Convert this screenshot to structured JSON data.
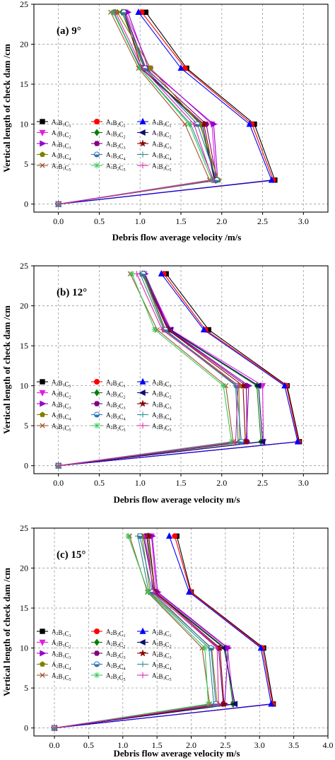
{
  "ylabel": "Vertical length of check dam /cm",
  "colors": {
    "C1": "#000000",
    "C2": "#ff0000",
    "C3": "#0000ff",
    "C4": "#e01ee0",
    "C5": "#008000",
    "C6": "#0d0d6e",
    "C7": "#9900cc",
    "C8": "#800080",
    "C9": "#8b0000",
    "C10": "#808000",
    "C11": "#2e75b6",
    "C12": "#2e8b8b",
    "C13": "#a0522d",
    "C14": "#33cc55",
    "C15": "#dd22aa"
  },
  "chart_data": [
    {
      "type": "line",
      "title": "(a) 9°",
      "xlabel": "Debris flow average velocity  /m/s",
      "ylabel": "Vertical length of check dam /cm",
      "xlim": [
        -0.3,
        3.3
      ],
      "ylim": [
        -1,
        25
      ],
      "xticks": [
        "0.0",
        "0.5",
        "1.0",
        "1.5",
        "2.0",
        "2.5",
        "3.0"
      ],
      "yticks": [
        "0",
        "5",
        "10",
        "15",
        "20",
        "25"
      ],
      "grid": true,
      "legend_position": "middle-left",
      "y": [
        0,
        3,
        10,
        17,
        24
      ],
      "series": [
        {
          "name": "A1B1C1",
          "x": [
            0,
            2.65,
            2.4,
            1.57,
            1.07
          ]
        },
        {
          "name": "A1B2C1",
          "x": [
            0,
            2.63,
            2.37,
            1.55,
            1.02
          ]
        },
        {
          "name": "A1B3C1",
          "x": [
            0,
            2.61,
            2.34,
            1.5,
            0.98
          ]
        },
        {
          "name": "A1B1C2",
          "x": [
            0,
            1.93,
            1.88,
            1.12,
            0.82
          ]
        },
        {
          "name": "A1B2C2",
          "x": [
            0,
            1.92,
            1.74,
            1.05,
            0.78
          ]
        },
        {
          "name": "A1B3C2",
          "x": [
            0,
            1.91,
            1.76,
            1.01,
            0.67
          ]
        },
        {
          "name": "A1B1C3",
          "x": [
            0,
            1.95,
            1.9,
            1.1,
            0.85
          ]
        },
        {
          "name": "A1B2C3",
          "x": [
            0,
            1.94,
            1.81,
            1.07,
            0.81
          ]
        },
        {
          "name": "A1B3C3",
          "x": [
            0,
            1.92,
            1.78,
            1.02,
            0.8
          ]
        },
        {
          "name": "A1B1C4",
          "x": [
            0,
            1.96,
            1.73,
            1.13,
            0.72
          ]
        },
        {
          "name": "A1B2C4",
          "x": [
            0,
            1.94,
            1.7,
            1.06,
            0.8
          ]
        },
        {
          "name": "A1B3C4",
          "x": [
            0,
            1.9,
            1.62,
            1.0,
            0.68
          ]
        },
        {
          "name": "A1B1C5",
          "x": [
            0,
            1.85,
            1.55,
            0.98,
            0.64
          ]
        },
        {
          "name": "A1B2C5",
          "x": [
            0,
            1.88,
            1.6,
            1.0,
            0.67
          ]
        },
        {
          "name": "A1B3C5",
          "x": [
            0,
            1.89,
            1.66,
            1.03,
            0.7
          ]
        }
      ]
    },
    {
      "type": "line",
      "title": "(b) 12°",
      "xlabel": "Debris flow average velocity m/s",
      "ylabel": "Vertical length of check dam /cm",
      "xlim": [
        -0.3,
        3.3
      ],
      "ylim": [
        -1,
        25
      ],
      "xticks": [
        "0.0",
        "0.5",
        "1.0",
        "1.5",
        "2.0",
        "2.5",
        "3.0"
      ],
      "yticks": [
        "0",
        "5",
        "10",
        "15",
        "20",
        "25"
      ],
      "grid": true,
      "legend_position": "middle-left",
      "y": [
        0,
        3,
        10,
        17,
        24
      ],
      "series": [
        {
          "name": "A2B1C1",
          "x": [
            0,
            2.95,
            2.8,
            1.84,
            1.32
          ]
        },
        {
          "name": "A2B2C1",
          "x": [
            0,
            2.94,
            2.79,
            1.8,
            1.29
          ]
        },
        {
          "name": "A2B3C1",
          "x": [
            0,
            2.93,
            2.77,
            1.78,
            1.26
          ]
        },
        {
          "name": "A2B1C2",
          "x": [
            0,
            2.51,
            2.5,
            1.38,
            1.05
          ]
        },
        {
          "name": "A2B2C2",
          "x": [
            0,
            2.48,
            2.43,
            1.36,
            1.05
          ]
        },
        {
          "name": "A2B3C2",
          "x": [
            0,
            2.5,
            2.45,
            1.37,
            1.02
          ]
        },
        {
          "name": "A2B1C3",
          "x": [
            0,
            2.3,
            2.33,
            1.36,
            1.06
          ]
        },
        {
          "name": "A2B2C3",
          "x": [
            0,
            2.31,
            2.3,
            1.35,
            1.04
          ]
        },
        {
          "name": "A2B3C3",
          "x": [
            0,
            2.29,
            2.26,
            1.34,
            1.03
          ]
        },
        {
          "name": "A2B1C4",
          "x": [
            0,
            2.22,
            2.21,
            1.3,
            1.03
          ]
        },
        {
          "name": "A2B2C4",
          "x": [
            0,
            2.24,
            2.18,
            1.31,
            1.04
          ]
        },
        {
          "name": "A2B3C4",
          "x": [
            0,
            2.2,
            2.17,
            1.29,
            1.0
          ]
        },
        {
          "name": "A2B1C5",
          "x": [
            0,
            2.14,
            2.05,
            1.21,
            0.88
          ]
        },
        {
          "name": "A2B2C5",
          "x": [
            0,
            2.12,
            2.02,
            1.18,
            0.9
          ]
        },
        {
          "name": "A2B3C5",
          "x": [
            0,
            2.17,
            2.2,
            1.27,
            0.96
          ]
        }
      ]
    },
    {
      "type": "line",
      "title": "(c) 15°",
      "xlabel": "Debris flow average velocity m/s",
      "ylabel": "Vertical length of check dam /cm",
      "xlim": [
        -0.3,
        4.0
      ],
      "ylim": [
        -1,
        25
      ],
      "xticks": [
        "0.0",
        "0.5",
        "1.0",
        "1.5",
        "2.0",
        "2.5",
        "3.0",
        "3.5",
        "4.0"
      ],
      "yticks": [
        "0",
        "5",
        "10",
        "15",
        "20",
        "25"
      ],
      "grid": true,
      "legend_position": "middle-left",
      "y": [
        0,
        3,
        10,
        17,
        24
      ],
      "series": [
        {
          "name": "A2B1C1",
          "x": [
            0,
            3.2,
            3.06,
            2.0,
            1.79
          ]
        },
        {
          "name": "A2B2C1",
          "x": [
            0,
            3.19,
            3.04,
            1.99,
            1.76
          ]
        },
        {
          "name": "A2B3C1",
          "x": [
            0,
            3.17,
            3.02,
            1.97,
            1.68
          ]
        },
        {
          "name": "A2B1C2",
          "x": [
            0,
            2.62,
            2.53,
            1.49,
            1.42
          ]
        },
        {
          "name": "A2B2C2",
          "x": [
            0,
            2.61,
            2.5,
            1.47,
            1.36
          ]
        },
        {
          "name": "A2B3C2",
          "x": [
            0,
            2.64,
            2.48,
            1.46,
            1.3
          ]
        },
        {
          "name": "A2B1C3",
          "x": [
            0,
            2.49,
            2.54,
            1.51,
            1.43
          ]
        },
        {
          "name": "A2B2C3",
          "x": [
            0,
            2.47,
            2.4,
            1.44,
            1.35
          ]
        },
        {
          "name": "A2B3C3",
          "x": [
            0,
            2.48,
            2.42,
            1.47,
            1.38
          ]
        },
        {
          "name": "A2B1C4",
          "x": [
            0,
            2.38,
            2.3,
            1.4,
            1.28
          ]
        },
        {
          "name": "A2B2C4",
          "x": [
            0,
            2.36,
            2.29,
            1.43,
            1.25
          ]
        },
        {
          "name": "A2B3C4",
          "x": [
            0,
            2.33,
            2.26,
            1.38,
            1.22
          ]
        },
        {
          "name": "A2B1C5",
          "x": [
            0,
            2.27,
            2.16,
            1.36,
            1.1
          ]
        },
        {
          "name": "A2B2C5",
          "x": [
            0,
            2.25,
            2.2,
            1.37,
            1.08
          ]
        },
        {
          "name": "A2B3C5",
          "x": [
            0,
            2.4,
            2.38,
            1.45,
            1.32
          ]
        }
      ]
    }
  ]
}
